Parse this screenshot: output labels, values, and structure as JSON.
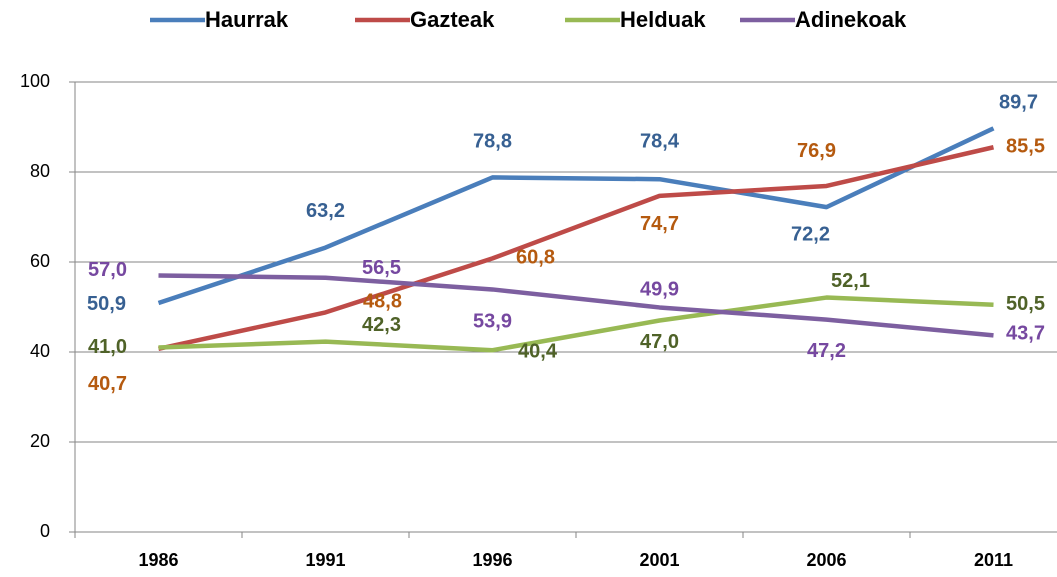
{
  "chart_data": {
    "type": "line",
    "categories": [
      "1986",
      "1991",
      "1996",
      "2001",
      "2006",
      "2011"
    ],
    "series": [
      {
        "name": "Haurrak",
        "color": "#4a7ebb",
        "label_color": "#376092",
        "values": [
          50.9,
          63.2,
          78.8,
          78.4,
          72.2,
          89.7
        ],
        "value_labels": [
          "50,9",
          "63,2",
          "78,8",
          "78,4",
          "72,2",
          "89,7"
        ]
      },
      {
        "name": "Gazteak",
        "color": "#be4b48",
        "label_color": "#b55a0f",
        "values": [
          40.7,
          48.8,
          60.8,
          74.7,
          76.9,
          85.5
        ],
        "value_labels": [
          "40,7",
          "48,8",
          "60,8",
          "74,7",
          "76,9",
          "85,5"
        ]
      },
      {
        "name": "Helduak",
        "color": "#98b954",
        "label_color": "#4f6228",
        "values": [
          41.0,
          42.3,
          40.4,
          47.0,
          52.1,
          50.5
        ],
        "value_labels": [
          "41,0",
          "42,3",
          "40,4",
          "47,0",
          "52,1",
          "50,5"
        ]
      },
      {
        "name": "Adinekoak",
        "color": "#7d5fa0",
        "label_color": "#7648a0",
        "values": [
          57.0,
          56.5,
          53.9,
          49.9,
          47.2,
          43.7
        ],
        "value_labels": [
          "57,0",
          "56,5",
          "53,9",
          "49,9",
          "47,2",
          "43,7"
        ]
      }
    ],
    "ylim": [
      0,
      100
    ],
    "yticks": [
      0,
      20,
      40,
      60,
      80,
      100
    ],
    "grid": true,
    "legend": "top"
  }
}
